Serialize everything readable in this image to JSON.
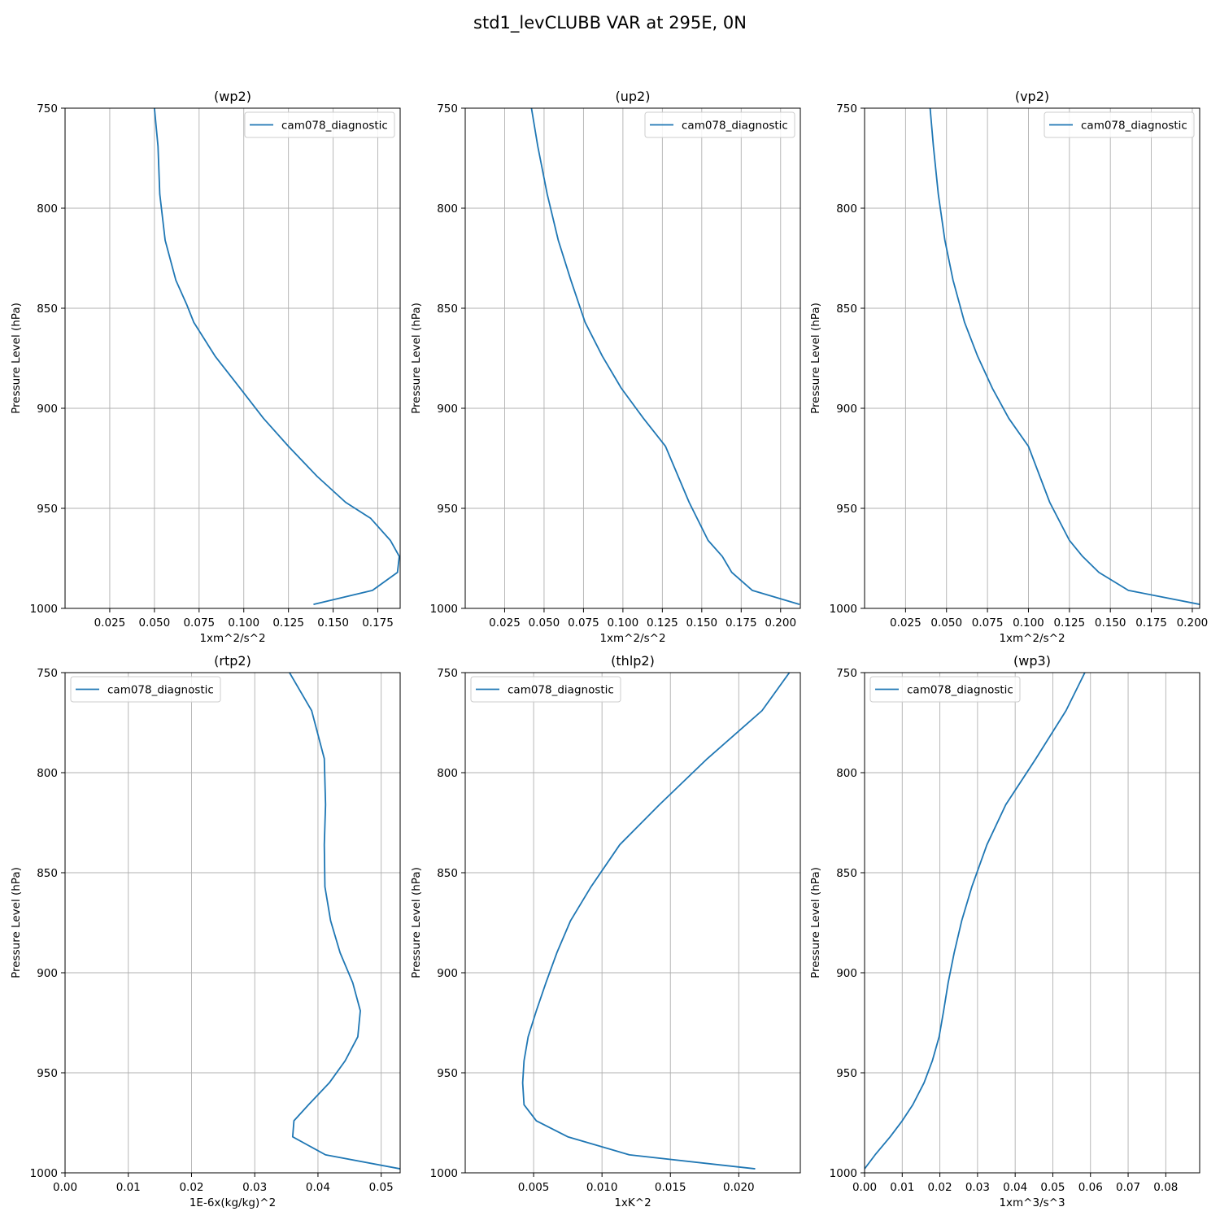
{
  "figure": {
    "suptitle": "std1_levCLUBB VAR at 295E, 0N"
  },
  "chart_data": [
    {
      "type": "line",
      "title": "(wp2)",
      "xlabel": "1xm^2/s^2",
      "ylabel": "Pressure Level (hPa)",
      "xlim": [
        0.0,
        0.1875
      ],
      "ylim": [
        1000,
        750
      ],
      "xticks": [
        0.025,
        0.05,
        0.075,
        0.1,
        0.125,
        0.15,
        0.175
      ],
      "xtick_labels": [
        "0.025",
        "0.050",
        "0.075",
        "0.100",
        "0.125",
        "0.150",
        "0.175"
      ],
      "yticks": [
        750,
        800,
        850,
        900,
        950,
        1000
      ],
      "grid": true,
      "legend_loc": "upper right",
      "series": [
        {
          "name": "cam078_diagnostic",
          "color": "#1f77b4",
          "x": [
            0.05,
            0.052,
            0.053,
            0.056,
            0.062,
            0.068,
            0.072,
            0.084,
            0.098,
            0.111,
            0.125,
            0.141,
            0.157,
            0.171,
            0.182,
            0.187,
            0.186,
            0.172,
            0.139
          ],
          "y": [
            750,
            769,
            793,
            816,
            836,
            848,
            857,
            874,
            890,
            905,
            919,
            934,
            947,
            955,
            966,
            974,
            982,
            991,
            998
          ]
        }
      ]
    },
    {
      "type": "line",
      "title": "(up2)",
      "xlabel": "1xm^2/s^2",
      "ylabel": "Pressure Level (hPa)",
      "xlim": [
        0.0,
        0.2125
      ],
      "ylim": [
        1000,
        750
      ],
      "xticks": [
        0.025,
        0.05,
        0.075,
        0.1,
        0.125,
        0.15,
        0.175,
        0.2
      ],
      "xtick_labels": [
        "0.025",
        "0.050",
        "0.075",
        "0.100",
        "0.125",
        "0.150",
        "0.175",
        "0.200"
      ],
      "yticks": [
        750,
        800,
        850,
        900,
        950,
        1000
      ],
      "grid": true,
      "legend_loc": "upper right",
      "series": [
        {
          "name": "cam078_diagnostic",
          "color": "#1f77b4",
          "x": [
            0.042,
            0.046,
            0.052,
            0.059,
            0.067,
            0.076,
            0.087,
            0.099,
            0.113,
            0.127,
            0.142,
            0.154,
            0.163,
            0.169,
            0.182,
            0.212
          ],
          "y": [
            750,
            769,
            793,
            816,
            836,
            857,
            874,
            890,
            905,
            919,
            947,
            966,
            974,
            982,
            991,
            998
          ]
        }
      ]
    },
    {
      "type": "line",
      "title": "(vp2)",
      "xlabel": "1xm^2/s^2",
      "ylabel": "Pressure Level (hPa)",
      "xlim": [
        0.0,
        0.2045
      ],
      "ylim": [
        1000,
        750
      ],
      "xticks": [
        0.025,
        0.05,
        0.075,
        0.1,
        0.125,
        0.15,
        0.175,
        0.2
      ],
      "xtick_labels": [
        "0.025",
        "0.050",
        "0.075",
        "0.100",
        "0.125",
        "0.150",
        "0.175",
        "0.200"
      ],
      "yticks": [
        750,
        800,
        850,
        900,
        950,
        1000
      ],
      "grid": true,
      "legend_loc": "upper right",
      "series": [
        {
          "name": "cam078_diagnostic",
          "color": "#1f77b4",
          "x": [
            0.04,
            0.042,
            0.045,
            0.049,
            0.054,
            0.061,
            0.069,
            0.078,
            0.088,
            0.1,
            0.113,
            0.125,
            0.133,
            0.143,
            0.161,
            0.2045
          ],
          "y": [
            750,
            769,
            793,
            816,
            836,
            857,
            874,
            890,
            905,
            919,
            947,
            966,
            974,
            982,
            991,
            998
          ]
        }
      ]
    },
    {
      "type": "line",
      "title": "(rtp2)",
      "xlabel": "1E-6x(kg/kg)^2",
      "ylabel": "Pressure Level (hPa)",
      "xlim": [
        0.0,
        0.053
      ],
      "ylim": [
        1000,
        750
      ],
      "xticks": [
        0.0,
        0.01,
        0.02,
        0.03,
        0.04,
        0.05
      ],
      "xtick_labels": [
        "0.00",
        "0.01",
        "0.02",
        "0.03",
        "0.04",
        "0.05"
      ],
      "yticks": [
        750,
        800,
        850,
        900,
        950,
        1000
      ],
      "grid": true,
      "legend_loc": "upper left",
      "series": [
        {
          "name": "cam078_diagnostic",
          "color": "#1f77b4",
          "x": [
            0.0355,
            0.039,
            0.041,
            0.0412,
            0.041,
            0.0411,
            0.042,
            0.0435,
            0.0455,
            0.0467,
            0.0463,
            0.0443,
            0.0418,
            0.0385,
            0.0362,
            0.036,
            0.0412,
            0.053
          ],
          "y": [
            750,
            769,
            793,
            816,
            836,
            857,
            874,
            890,
            905,
            919,
            932,
            944,
            955,
            966,
            974,
            982,
            991,
            998
          ]
        }
      ]
    },
    {
      "type": "line",
      "title": "(thlp2)",
      "xlabel": "1xK^2",
      "ylabel": "Pressure Level (hPa)",
      "xlim": [
        0.0,
        0.0245
      ],
      "ylim": [
        1000,
        750
      ],
      "xticks": [
        0.005,
        0.01,
        0.015,
        0.02
      ],
      "xtick_labels": [
        "0.005",
        "0.010",
        "0.015",
        "0.020"
      ],
      "yticks": [
        750,
        800,
        850,
        900,
        950,
        1000
      ],
      "grid": true,
      "legend_loc": "upper left",
      "series": [
        {
          "name": "cam078_diagnostic",
          "color": "#1f77b4",
          "x": [
            0.0237,
            0.0217,
            0.0177,
            0.0142,
            0.0113,
            0.0092,
            0.0077,
            0.0067,
            0.0059,
            0.0052,
            0.0046,
            0.0043,
            0.0042,
            0.0043,
            0.0052,
            0.0075,
            0.012,
            0.0212
          ],
          "y": [
            750,
            769,
            793,
            816,
            836,
            857,
            874,
            890,
            905,
            919,
            932,
            944,
            955,
            966,
            974,
            982,
            991,
            998
          ]
        }
      ]
    },
    {
      "type": "line",
      "title": "(wp3)",
      "xlabel": "1xm^3/s^3",
      "ylabel": "Pressure Level (hPa)",
      "xlim": [
        0.0,
        0.089
      ],
      "ylim": [
        1000,
        750
      ],
      "xticks": [
        0.0,
        0.01,
        0.02,
        0.03,
        0.04,
        0.05,
        0.06,
        0.07,
        0.08
      ],
      "xtick_labels": [
        "0.00",
        "0.01",
        "0.02",
        "0.03",
        "0.04",
        "0.05",
        "0.06",
        "0.07",
        "0.08"
      ],
      "yticks": [
        750,
        800,
        850,
        900,
        950,
        1000
      ],
      "grid": true,
      "legend_loc": "upper left",
      "series": [
        {
          "name": "cam078_diagnostic",
          "color": "#1f77b4",
          "x": [
            0.0585,
            0.0535,
            0.0455,
            0.0375,
            0.0325,
            0.0285,
            0.0258,
            0.0238,
            0.0222,
            0.021,
            0.0198,
            0.018,
            0.0158,
            0.0128,
            0.01,
            0.0068,
            0.0028,
            0.0
          ],
          "y": [
            750,
            769,
            793,
            816,
            836,
            857,
            874,
            890,
            905,
            919,
            932,
            944,
            955,
            966,
            974,
            982,
            991,
            998
          ]
        }
      ]
    }
  ]
}
